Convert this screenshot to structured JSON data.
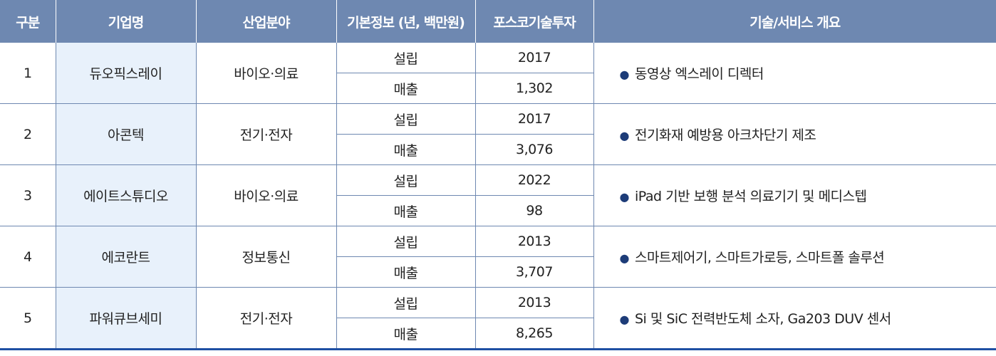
{
  "headers": {
    "no": "구분",
    "company": "기업명",
    "industry": "산업분야",
    "basic_info": "기본정보 (년, 백만원)",
    "investment": "포스코기술투자",
    "overview": "기술/서비스 개요"
  },
  "rows": [
    {
      "no": "1",
      "company": "듀오픽스레이",
      "industry": "바이오·의료",
      "label1": "설립",
      "value1": "2017",
      "label2": "매출",
      "value2": "1,302",
      "desc": "동영상 엑스레이 디렉터"
    },
    {
      "no": "2",
      "company": "아콘텍",
      "industry": "전기·전자",
      "label1": "설립",
      "value1": "2017",
      "label2": "매출",
      "value2": "3,076",
      "desc": "전기화재 예방용 아크차단기 제조"
    },
    {
      "no": "3",
      "company": "에이트스튜디오",
      "industry": "바이오·의료",
      "label1": "설립",
      "value1": "2022",
      "label2": "매출",
      "value2": "98",
      "desc": "iPad 기반 보행 분석 의료기기 및 메디스텝"
    },
    {
      "no": "4",
      "company": "에코란트",
      "industry": "정보통신",
      "label1": "설립",
      "value1": "2013",
      "label2": "매출",
      "value2": "3,707",
      "desc": "스마트제어기, 스마트가로등, 스마트폴 솔루션"
    },
    {
      "no": "5",
      "company": "파워큐브세미",
      "industry": "전기·전자",
      "label1": "설립",
      "value1": "2013",
      "label2": "매출",
      "value2": "8,265",
      "desc": "Si 및 SiC 전력반도체 소자, Ga203 DUV 센서"
    }
  ],
  "bullet": "●"
}
